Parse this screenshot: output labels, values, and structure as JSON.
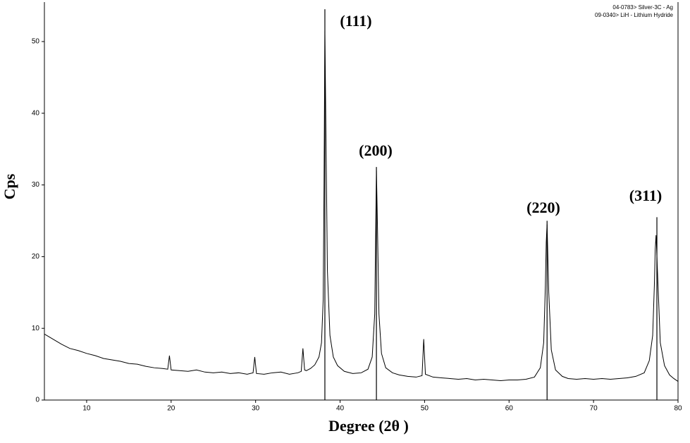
{
  "chart_data": {
    "type": "line",
    "x_label": "Degree (2θ )",
    "y_label": "Cps",
    "xlim": [
      5,
      80
    ],
    "ylim": [
      0,
      55.5
    ],
    "xticks": [
      10,
      20,
      30,
      40,
      50,
      60,
      70,
      80
    ],
    "yticks": [
      0,
      10,
      20,
      30,
      40,
      50
    ],
    "annotations": [
      "(111)",
      "(200)",
      "(220)",
      "(311)"
    ],
    "series": [
      {
        "color": "#000000",
        "x": [
          5,
          6,
          7,
          8,
          9,
          10,
          11,
          12,
          13,
          14,
          15,
          16,
          17,
          18,
          19,
          19.6,
          19.8,
          20,
          21,
          22,
          23,
          24,
          25,
          26,
          27,
          28,
          29,
          29.7,
          29.9,
          30.1,
          31,
          32,
          33,
          34,
          35,
          35.4,
          35.6,
          35.8,
          36,
          36.5,
          37,
          37.5,
          37.8,
          38,
          38.1,
          38.2,
          38.3,
          38.5,
          38.8,
          39.2,
          39.7,
          40.5,
          41.5,
          42.5,
          43.3,
          43.8,
          44.1,
          44.2,
          44.3,
          44.4,
          44.6,
          44.9,
          45.4,
          46.2,
          47,
          48,
          49,
          49.7,
          49.9,
          50.1,
          51,
          52,
          53,
          54,
          55,
          56,
          57,
          58,
          59,
          60,
          61,
          62,
          63,
          63.7,
          64.1,
          64.3,
          64.4,
          64.5,
          64.7,
          65,
          65.5,
          66.3,
          67,
          68,
          69,
          70,
          71,
          72,
          73,
          74,
          75,
          76,
          76.6,
          77,
          77.2,
          77.3,
          77.4,
          77.6,
          77.9,
          78.4,
          79,
          79.5,
          80
        ],
        "values": [
          9.2,
          8.5,
          7.8,
          7.2,
          6.9,
          6.5,
          6.2,
          5.8,
          5.6,
          5.4,
          5.1,
          5.0,
          4.7,
          4.5,
          4.4,
          4.3,
          6.2,
          4.2,
          4.1,
          4.0,
          4.2,
          3.9,
          3.8,
          3.9,
          3.7,
          3.8,
          3.6,
          3.8,
          6.0,
          3.7,
          3.6,
          3.8,
          3.9,
          3.6,
          3.8,
          4.0,
          7.2,
          4.2,
          4.1,
          4.4,
          4.9,
          6.0,
          8.0,
          14,
          30,
          51.5,
          40,
          18,
          9,
          6,
          4.8,
          4.0,
          3.7,
          3.8,
          4.3,
          6,
          12,
          22,
          32,
          26,
          12,
          6.5,
          4.5,
          3.8,
          3.5,
          3.3,
          3.2,
          3.4,
          8.5,
          3.6,
          3.2,
          3.1,
          3.0,
          2.9,
          3.0,
          2.8,
          2.9,
          2.8,
          2.7,
          2.8,
          2.8,
          2.9,
          3.2,
          4.5,
          8,
          16,
          22,
          24.5,
          15,
          7,
          4.2,
          3.3,
          3.0,
          2.9,
          3.0,
          2.9,
          3.0,
          2.9,
          3.0,
          3.1,
          3.3,
          3.8,
          5.5,
          9,
          16,
          21,
          23,
          17,
          8,
          4.8,
          3.5,
          3.0,
          2.6
        ]
      }
    ],
    "references": [
      {
        "name": "04-0783> Silver-3C - Ag",
        "color": "#000000",
        "x": [
          38.2,
          44.3,
          64.5,
          77.5
        ],
        "values": [
          54.5,
          32.5,
          25,
          25.5
        ]
      },
      {
        "name": "09-0340> LiH - Lithium Hydride",
        "color": "#000000",
        "x": [],
        "values": []
      }
    ]
  }
}
